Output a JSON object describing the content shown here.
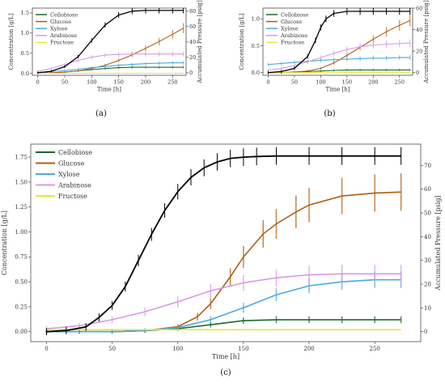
{
  "chart_data": [
    {
      "id": "a",
      "type": "line",
      "caption": "(a)",
      "xlabel": "Time [h]",
      "ylabel": "Concentration [g/L]",
      "y2label": "Accumulated Pressure [psig]",
      "xlim": [
        -10,
        275
      ],
      "ylim": [
        -0.05,
        1.62
      ],
      "y2lim": [
        -3.3,
        84
      ],
      "xticks": [
        0,
        50,
        100,
        150,
        200,
        250
      ],
      "yticks": [
        0.0,
        0.5,
        1.0,
        1.5
      ],
      "ytick_labels": [
        "0.0",
        "0.5",
        "1.0",
        "1.5"
      ],
      "y2ticks": [
        0,
        20,
        40,
        60,
        80
      ],
      "legend_position": "upper-left",
      "grid": false,
      "series": [
        {
          "name": "Cellobiose",
          "color": "#1b6b2a",
          "x": [
            0,
            25,
            50,
            75,
            100,
            125,
            150,
            175,
            200,
            225,
            250,
            270
          ],
          "y": [
            0.0,
            0.01,
            0.03,
            0.06,
            0.09,
            0.12,
            0.14,
            0.15,
            0.15,
            0.15,
            0.15,
            0.15
          ]
        },
        {
          "name": "Glucose",
          "color": "#b05d14",
          "x": [
            0,
            25,
            50,
            75,
            100,
            125,
            150,
            175,
            200,
            225,
            250,
            270
          ],
          "y": [
            0.0,
            0.01,
            0.03,
            0.06,
            0.12,
            0.2,
            0.32,
            0.46,
            0.62,
            0.79,
            0.97,
            1.12
          ]
        },
        {
          "name": "Xylose",
          "color": "#4aa8e0",
          "x": [
            0,
            25,
            50,
            75,
            100,
            125,
            150,
            175,
            200,
            225,
            250,
            270
          ],
          "y": [
            0.02,
            0.04,
            0.07,
            0.1,
            0.14,
            0.17,
            0.2,
            0.22,
            0.24,
            0.25,
            0.26,
            0.26
          ]
        },
        {
          "name": "Arabinose",
          "color": "#d79ae6",
          "x": [
            0,
            25,
            50,
            75,
            100,
            125,
            150,
            175,
            200,
            225,
            250,
            270
          ],
          "y": [
            0.05,
            0.12,
            0.22,
            0.32,
            0.4,
            0.45,
            0.47,
            0.48,
            0.48,
            0.48,
            0.48,
            0.48
          ]
        },
        {
          "name": "Fructose",
          "color": "#e8e83a",
          "x": [
            0,
            270
          ],
          "y": [
            0.0,
            0.0
          ]
        }
      ],
      "pressure_series": {
        "name": "Accumulated Pressure",
        "color": "#000000",
        "x": [
          0,
          25,
          50,
          75,
          100,
          125,
          150,
          175,
          200,
          225,
          250,
          270
        ],
        "y": [
          0,
          2,
          8,
          21,
          42,
          62,
          75,
          80,
          81,
          81,
          81,
          81
        ]
      }
    },
    {
      "id": "b",
      "type": "line",
      "caption": "(b)",
      "xlabel": "Time [h]",
      "ylabel": "Concentration [g/L]",
      "y2label": "Accumulated Pressure [psig]",
      "xlim": [
        -10,
        275
      ],
      "ylim": [
        -0.05,
        1.2
      ],
      "y2lim": [
        -2.5,
        60
      ],
      "xticks": [
        0,
        50,
        100,
        150,
        200,
        250
      ],
      "yticks": [
        0.0,
        0.5,
        1.0
      ],
      "ytick_labels": [
        "0.0",
        "0.5",
        "1.0"
      ],
      "y2ticks": [
        0,
        20,
        40,
        60
      ],
      "legend_position": "upper-left",
      "grid": false,
      "series": [
        {
          "name": "Cellobiose",
          "color": "#1b6b2a",
          "x": [
            0,
            25,
            50,
            75,
            100,
            125,
            150,
            175,
            200,
            225,
            250,
            270
          ],
          "y": [
            0.0,
            0.0,
            0.01,
            0.02,
            0.03,
            0.04,
            0.05,
            0.05,
            0.05,
            0.05,
            0.05,
            0.05
          ]
        },
        {
          "name": "Glucose",
          "color": "#b05d14",
          "x": [
            0,
            25,
            50,
            75,
            100,
            125,
            150,
            175,
            200,
            225,
            250,
            270
          ],
          "y": [
            0.0,
            0.0,
            0.01,
            0.03,
            0.08,
            0.18,
            0.32,
            0.47,
            0.62,
            0.76,
            0.88,
            0.97
          ]
        },
        {
          "name": "Xylose",
          "color": "#4aa8e0",
          "x": [
            0,
            25,
            50,
            75,
            100,
            125,
            150,
            175,
            200,
            225,
            250,
            270
          ],
          "y": [
            0.15,
            0.17,
            0.19,
            0.21,
            0.23,
            0.24,
            0.25,
            0.26,
            0.27,
            0.27,
            0.28,
            0.28
          ]
        },
        {
          "name": "Arabinose",
          "color": "#d79ae6",
          "x": [
            0,
            25,
            50,
            75,
            100,
            125,
            150,
            175,
            200,
            225,
            250,
            270
          ],
          "y": [
            0.05,
            0.08,
            0.13,
            0.2,
            0.28,
            0.36,
            0.43,
            0.48,
            0.51,
            0.53,
            0.54,
            0.55
          ]
        },
        {
          "name": "Fructose",
          "color": "#e8e83a",
          "x": [
            0,
            270
          ],
          "y": [
            0.0,
            0.0
          ]
        }
      ],
      "pressure_series": {
        "name": "Accumulated Pressure",
        "color": "#000000",
        "x": [
          0,
          25,
          50,
          75,
          90,
          100,
          110,
          125,
          150,
          175,
          200,
          225,
          250,
          270
        ],
        "y": [
          0,
          1,
          4,
          15,
          30,
          42,
          50,
          55,
          57,
          57,
          57,
          57,
          57,
          57
        ]
      }
    },
    {
      "id": "c",
      "type": "line",
      "caption": "(c)",
      "xlabel": "Time [h]",
      "ylabel": "Concentration [g/L]",
      "y2label": "Accumulated Pressure [psig]",
      "xlim": [
        -12,
        285
      ],
      "ylim": [
        -0.1,
        1.88
      ],
      "y2lim": [
        -4.2,
        79
      ],
      "xticks": [
        0,
        50,
        100,
        150,
        200,
        250
      ],
      "yticks": [
        0.0,
        0.25,
        0.5,
        0.75,
        1.0,
        1.25,
        1.5,
        1.75
      ],
      "ytick_labels": [
        "0.00",
        "0.25",
        "0.50",
        "0.75",
        "1.00",
        "1.25",
        "1.50",
        "1.75"
      ],
      "y2ticks": [
        0,
        10,
        20,
        30,
        40,
        50,
        60,
        70
      ],
      "legend_position": "upper-left",
      "grid": false,
      "series": [
        {
          "name": "Cellobiose",
          "color": "#1b6b2a",
          "x": [
            0,
            25,
            50,
            75,
            100,
            125,
            150,
            175,
            200,
            225,
            250,
            270
          ],
          "y": [
            0.0,
            0.0,
            0.0,
            0.01,
            0.03,
            0.07,
            0.11,
            0.12,
            0.12,
            0.12,
            0.12,
            0.12
          ]
        },
        {
          "name": "Glucose",
          "color": "#b05d14",
          "x": [
            0,
            25,
            50,
            75,
            100,
            115,
            125,
            140,
            150,
            165,
            175,
            190,
            200,
            225,
            250,
            270
          ],
          "y": [
            0.0,
            0.0,
            0.0,
            0.01,
            0.05,
            0.15,
            0.28,
            0.55,
            0.75,
            0.98,
            1.08,
            1.2,
            1.27,
            1.36,
            1.39,
            1.4
          ]
        },
        {
          "name": "Xylose",
          "color": "#4aa8e0",
          "x": [
            0,
            25,
            50,
            75,
            100,
            125,
            150,
            175,
            200,
            225,
            250,
            270
          ],
          "y": [
            0.0,
            0.0,
            0.0,
            0.01,
            0.04,
            0.12,
            0.24,
            0.37,
            0.46,
            0.5,
            0.52,
            0.52
          ]
        },
        {
          "name": "Arabinose",
          "color": "#d79ae6",
          "x": [
            0,
            25,
            50,
            75,
            100,
            125,
            150,
            175,
            200,
            225,
            250,
            270
          ],
          "y": [
            0.03,
            0.06,
            0.12,
            0.2,
            0.3,
            0.41,
            0.49,
            0.54,
            0.57,
            0.58,
            0.58,
            0.58
          ]
        },
        {
          "name": "Fructose",
          "color": "#e8e83a",
          "x": [
            0,
            270
          ],
          "y": [
            0.02,
            0.02
          ]
        }
      ],
      "pressure_series": {
        "name": "Accumulated Pressure",
        "color": "#000000",
        "x": [
          0,
          15,
          30,
          40,
          50,
          60,
          70,
          80,
          90,
          100,
          110,
          120,
          130,
          140,
          150,
          160,
          175,
          200,
          225,
          250,
          270
        ],
        "y": [
          0,
          0.5,
          2,
          6,
          11,
          19,
          30,
          41,
          51,
          59,
          65,
          69,
          71.5,
          73,
          73.5,
          73.8,
          74,
          74,
          74,
          74,
          74
        ]
      }
    }
  ]
}
